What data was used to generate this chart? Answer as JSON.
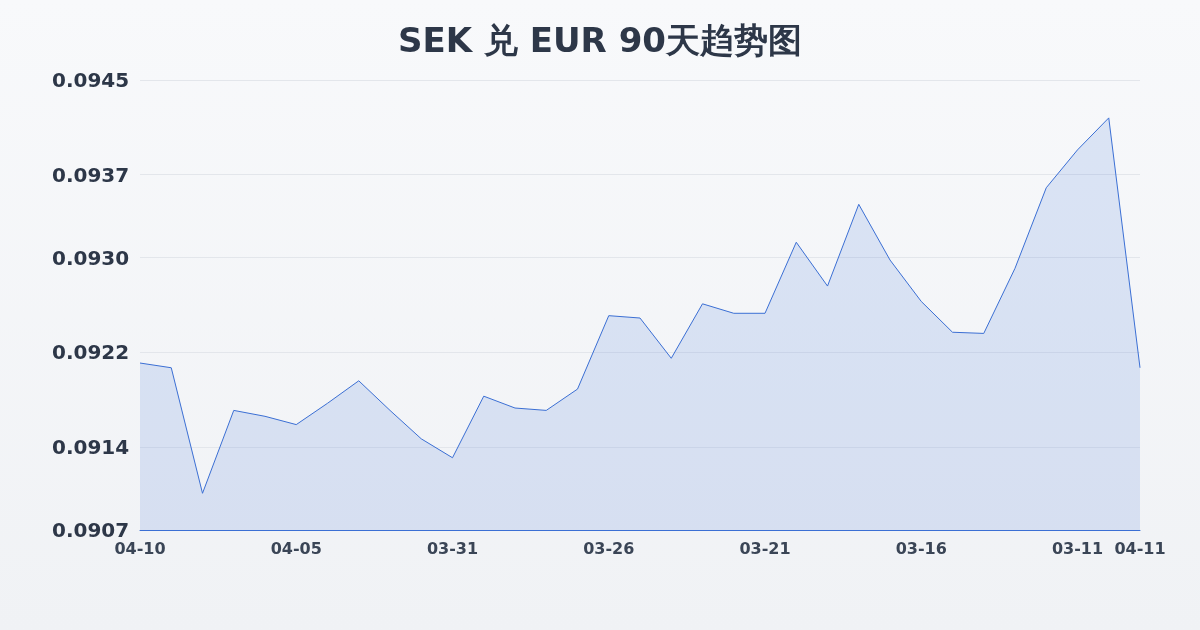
{
  "chart_data": {
    "type": "area",
    "title": "SEK 兑 EUR 90天趋势图",
    "categories": [
      "04-10",
      null,
      null,
      null,
      null,
      "04-05",
      null,
      null,
      null,
      null,
      "03-31",
      null,
      null,
      null,
      null,
      "03-26",
      null,
      null,
      null,
      null,
      "03-21",
      null,
      null,
      null,
      null,
      "03-16",
      null,
      null,
      null,
      null,
      "03-11",
      null,
      "04-11"
    ],
    "series": [
      {
        "color": "#3b6fd4",
        "values": [
          0.09211,
          0.09207,
          0.09101,
          0.09171,
          0.09166,
          0.09159,
          0.09177,
          0.09196,
          0.09171,
          0.09147,
          0.09131,
          0.09183,
          0.09173,
          0.09171,
          0.09189,
          0.09251,
          0.09249,
          0.09215,
          0.09261,
          0.09253,
          0.09253,
          0.09313,
          0.09276,
          0.09345,
          0.09298,
          0.09263,
          0.09237,
          0.09236,
          0.09291,
          0.09359,
          0.09391,
          0.09418,
          0.09207
        ]
      }
    ],
    "ylim": [
      0.0907,
      0.0945
    ],
    "yticks": [
      0.0907,
      0.0914,
      0.0922,
      {
        "value": 0.093,
        "label": "0.0930"
      },
      0.0937,
      0.0945
    ],
    "grid": "y",
    "marker": "none",
    "line_style": "solid"
  }
}
